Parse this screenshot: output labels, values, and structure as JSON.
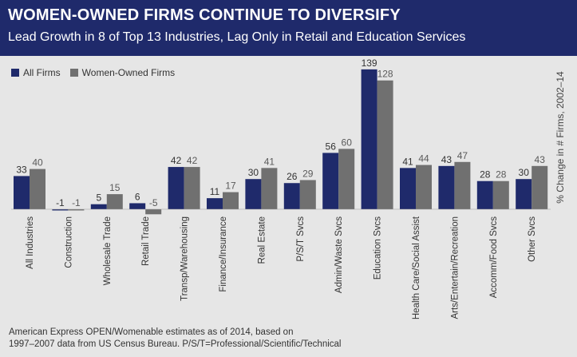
{
  "header": {
    "title": "WOMEN-OWNED FIRMS CONTINUE TO DIVERSIFY",
    "subtitle": "Lead Growth in 8 of Top 13 Industries, Lag Only in Retail and Education Services"
  },
  "footnote": {
    "line1": "American Express OPEN/Womenable estimates as of 2014, based on",
    "line2": "1997–2007 data from US Census Bureau. P/S/T=Professional/Scientific/Technical"
  },
  "colors": {
    "all_firms": "#1f2a6b",
    "women_owned": "#707070",
    "header_bg": "#1f2a6b",
    "background": "#e6e6e6"
  },
  "chart_data": {
    "type": "bar",
    "title": "WOMEN-OWNED FIRMS CONTINUE TO DIVERSIFY",
    "subtitle": "Lead Growth in 8 of Top 13 Industries, Lag Only in Retail and Education Services",
    "xlabel": "",
    "ylabel": "% Change in # Firms, 2002–14",
    "categories": [
      "All Industries",
      "Construction",
      "Wholesale Trade",
      "Retail Trade",
      "Transp/Warehousing",
      "Finance/Insurance",
      "Real Estate",
      "P/S/T Svcs",
      "Admin/Waste Svcs",
      "Education Svcs",
      "Health Care/Social Assist",
      "Arts/Entertain/Recreation",
      "Accomm/Food Svcs",
      "Other Svcs"
    ],
    "series": [
      {
        "name": "All Firms",
        "values": [
          33,
          -1,
          5,
          6,
          42,
          11,
          30,
          26,
          56,
          139,
          41,
          43,
          28,
          30
        ]
      },
      {
        "name": "Women-Owned Firms",
        "values": [
          40,
          -1,
          15,
          -5,
          42,
          17,
          41,
          29,
          60,
          128,
          44,
          47,
          28,
          43
        ]
      }
    ],
    "ylim": [
      -5,
      139
    ],
    "grid": false,
    "legend_position": "top-left"
  }
}
